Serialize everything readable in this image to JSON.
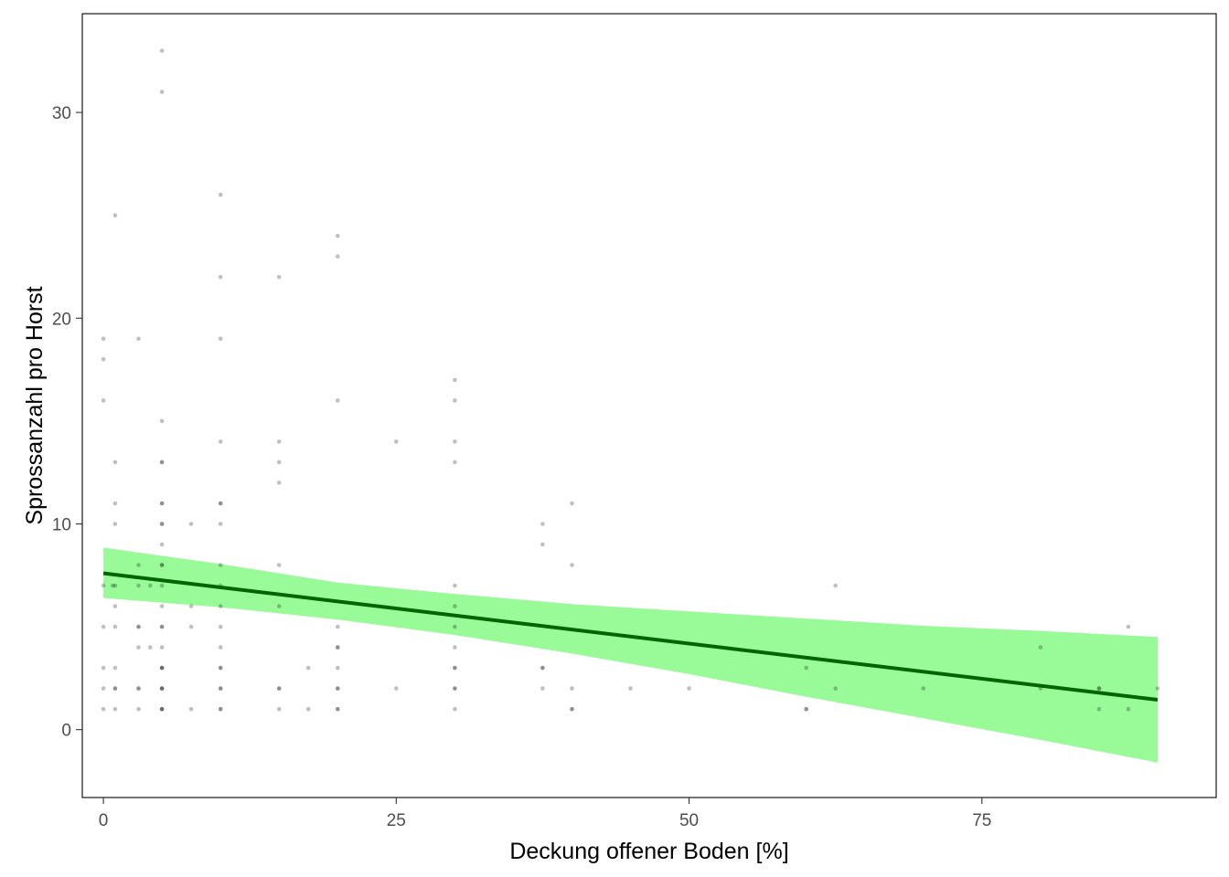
{
  "chart_data": {
    "type": "scatter",
    "title": "",
    "xlabel": "Deckung offener Boden [%]",
    "ylabel": "Sprossanzahl pro Horst",
    "xlim": [
      -1.8,
      95
    ],
    "ylim": [
      -3.3,
      34.8
    ],
    "x_ticks": [
      0,
      25,
      50,
      75
    ],
    "y_ticks": [
      0,
      10,
      20,
      30
    ],
    "x_tick_labels": [
      "0",
      "25",
      "50",
      "75"
    ],
    "y_tick_labels": [
      "0",
      "10",
      "20",
      "30"
    ],
    "grid": false,
    "legend": "none",
    "colors": {
      "points": "#000000",
      "fit_line": "#006400",
      "confidence_band": "#98fb98",
      "panel_border": "#000000",
      "tick": "#333333",
      "tick_label": "#4d4d4d"
    },
    "points_opacity": 0.25,
    "points": [
      [
        0,
        1
      ],
      [
        0,
        2
      ],
      [
        0,
        3
      ],
      [
        0,
        5
      ],
      [
        0,
        7
      ],
      [
        0,
        16
      ],
      [
        0,
        18
      ],
      [
        0,
        19
      ],
      [
        0.8,
        7
      ],
      [
        1,
        1
      ],
      [
        1,
        2
      ],
      [
        1,
        2
      ],
      [
        1,
        3
      ],
      [
        1,
        5
      ],
      [
        1,
        6
      ],
      [
        1,
        7
      ],
      [
        1,
        10
      ],
      [
        1,
        11
      ],
      [
        1,
        13
      ],
      [
        1,
        25
      ],
      [
        3,
        1
      ],
      [
        3,
        2
      ],
      [
        3,
        2
      ],
      [
        3,
        4
      ],
      [
        3,
        5
      ],
      [
        3,
        5
      ],
      [
        3,
        7
      ],
      [
        3,
        8
      ],
      [
        3,
        19
      ],
      [
        4,
        4
      ],
      [
        4,
        7
      ],
      [
        5,
        1
      ],
      [
        5,
        1
      ],
      [
        5,
        1
      ],
      [
        5,
        2
      ],
      [
        5,
        2
      ],
      [
        5,
        2
      ],
      [
        5,
        3
      ],
      [
        5,
        3
      ],
      [
        5,
        3
      ],
      [
        5,
        4
      ],
      [
        5,
        5
      ],
      [
        5,
        5
      ],
      [
        5,
        6
      ],
      [
        5,
        7
      ],
      [
        5,
        8
      ],
      [
        5,
        8
      ],
      [
        5,
        9
      ],
      [
        5,
        10
      ],
      [
        5,
        10
      ],
      [
        5,
        11
      ],
      [
        5,
        11
      ],
      [
        5,
        13
      ],
      [
        5,
        13
      ],
      [
        5,
        15
      ],
      [
        5,
        31
      ],
      [
        5,
        33
      ],
      [
        7.5,
        1
      ],
      [
        7.5,
        5
      ],
      [
        7.5,
        6
      ],
      [
        7.5,
        10
      ],
      [
        10,
        1
      ],
      [
        10,
        1
      ],
      [
        10,
        2
      ],
      [
        10,
        2
      ],
      [
        10,
        3
      ],
      [
        10,
        3
      ],
      [
        10,
        4
      ],
      [
        10,
        5
      ],
      [
        10,
        6
      ],
      [
        10,
        7
      ],
      [
        10,
        8
      ],
      [
        10,
        10
      ],
      [
        10,
        11
      ],
      [
        10,
        11
      ],
      [
        10,
        14
      ],
      [
        10,
        19
      ],
      [
        10,
        22
      ],
      [
        10,
        26
      ],
      [
        15,
        1
      ],
      [
        15,
        2
      ],
      [
        15,
        2
      ],
      [
        15,
        6
      ],
      [
        15,
        8
      ],
      [
        15,
        12
      ],
      [
        15,
        13
      ],
      [
        15,
        14
      ],
      [
        15,
        22
      ],
      [
        17.5,
        1
      ],
      [
        17.5,
        3
      ],
      [
        20,
        1
      ],
      [
        20,
        1
      ],
      [
        20,
        2
      ],
      [
        20,
        2
      ],
      [
        20,
        3
      ],
      [
        20,
        4
      ],
      [
        20,
        4
      ],
      [
        20,
        5
      ],
      [
        20,
        16
      ],
      [
        20,
        23
      ],
      [
        20,
        24
      ],
      [
        25,
        2
      ],
      [
        25,
        14
      ],
      [
        30,
        1
      ],
      [
        30,
        2
      ],
      [
        30,
        2
      ],
      [
        30,
        3
      ],
      [
        30,
        3
      ],
      [
        30,
        4
      ],
      [
        30,
        5
      ],
      [
        30,
        6
      ],
      [
        30,
        7
      ],
      [
        30,
        13
      ],
      [
        30,
        14
      ],
      [
        30,
        16
      ],
      [
        30,
        17
      ],
      [
        37.5,
        2
      ],
      [
        37.5,
        3
      ],
      [
        37.5,
        3
      ],
      [
        37.5,
        9
      ],
      [
        37.5,
        10
      ],
      [
        40,
        1
      ],
      [
        40,
        1
      ],
      [
        40,
        2
      ],
      [
        40,
        8
      ],
      [
        40,
        11
      ],
      [
        45,
        2
      ],
      [
        50,
        2
      ],
      [
        60,
        1
      ],
      [
        60,
        1
      ],
      [
        60,
        3
      ],
      [
        62.5,
        2
      ],
      [
        62.5,
        7
      ],
      [
        70,
        2
      ],
      [
        80,
        2
      ],
      [
        80,
        4
      ],
      [
        85,
        1
      ],
      [
        85,
        2
      ],
      [
        85,
        2
      ],
      [
        87.5,
        1
      ],
      [
        87.5,
        5
      ],
      [
        90,
        2
      ]
    ],
    "fit": {
      "x": [
        0,
        90
      ],
      "y": [
        7.6,
        1.45
      ]
    },
    "confidence_band": {
      "x": [
        0,
        10,
        20,
        30,
        40,
        50,
        60,
        70,
        80,
        90
      ],
      "lower": [
        6.4,
        5.95,
        5.35,
        4.6,
        3.7,
        2.7,
        1.6,
        0.55,
        -0.5,
        -1.6
      ],
      "upper": [
        8.85,
        8.05,
        7.15,
        6.6,
        6.1,
        5.75,
        5.4,
        5.05,
        4.8,
        4.5
      ]
    }
  }
}
